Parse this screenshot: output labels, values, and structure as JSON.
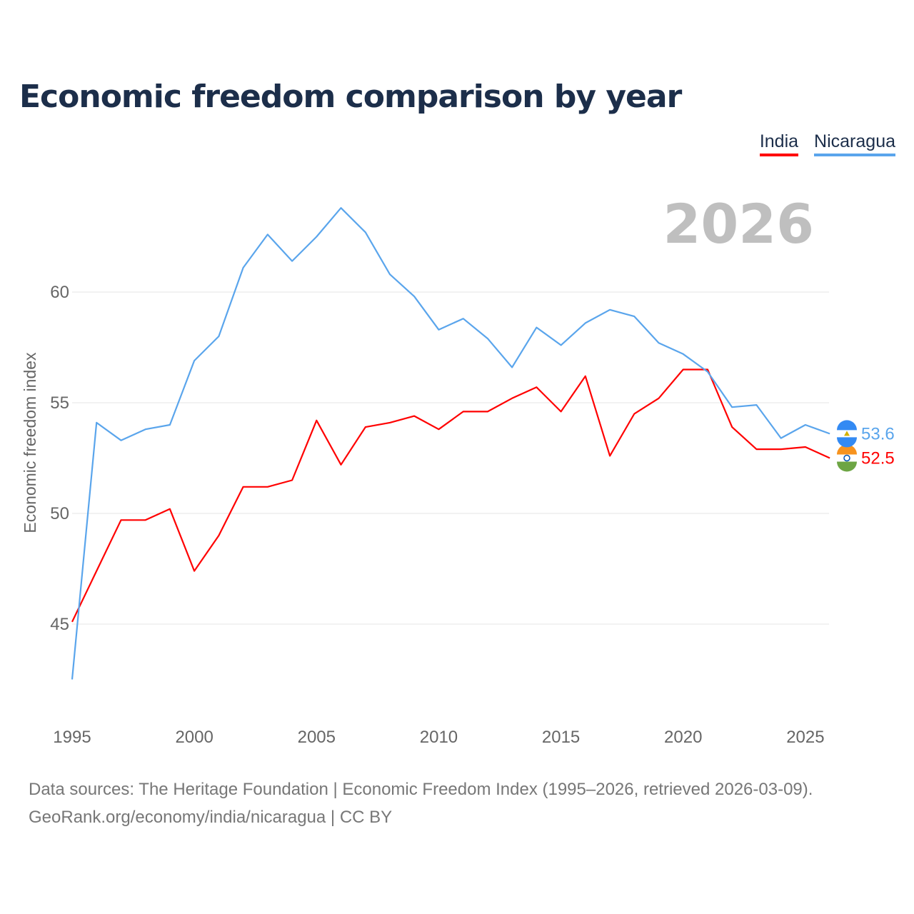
{
  "title": "Economic freedom comparison by year",
  "footer": {
    "line1": "Data sources: The Heritage Foundation | Economic Freedom Index (1995–2026, retrieved 2026-03-09).",
    "line2": "GeoRank.org/economy/india/nicaragua | CC BY"
  },
  "chart_data": {
    "type": "line",
    "title": "Economic freedom comparison by year",
    "xlabel": "",
    "ylabel": "Economic freedom index",
    "current_year": "2026",
    "xlim": [
      1995,
      2026
    ],
    "ylim": [
      42,
      66
    ],
    "x_ticks": [
      1995,
      2000,
      2005,
      2010,
      2015,
      2020,
      2025
    ],
    "y_ticks": [
      45,
      50,
      55,
      60
    ],
    "grid": true,
    "legend_position": "top-right",
    "x": [
      1995,
      1996,
      1997,
      1998,
      1999,
      2000,
      2001,
      2002,
      2003,
      2004,
      2005,
      2006,
      2007,
      2008,
      2009,
      2010,
      2011,
      2012,
      2013,
      2014,
      2015,
      2016,
      2017,
      2018,
      2019,
      2020,
      2021,
      2022,
      2023,
      2024,
      2025,
      2026
    ],
    "series": [
      {
        "name": "India",
        "color": "#ff0000",
        "flag": "india-flag",
        "end_label": "52.5",
        "values": [
          45.1,
          47.4,
          49.7,
          49.7,
          50.2,
          47.4,
          49.0,
          51.2,
          51.2,
          51.5,
          54.2,
          52.2,
          53.9,
          54.1,
          54.4,
          53.8,
          54.6,
          54.6,
          55.2,
          55.7,
          54.6,
          56.2,
          52.6,
          54.5,
          55.2,
          56.5,
          56.5,
          53.9,
          52.9,
          52.9,
          53.0,
          52.5
        ]
      },
      {
        "name": "Nicaragua",
        "color": "#5aa5ec",
        "flag": "nicaragua-flag",
        "end_label": "53.6",
        "values": [
          42.5,
          54.1,
          53.3,
          53.8,
          54.0,
          56.9,
          58.0,
          61.1,
          62.6,
          61.4,
          62.5,
          63.8,
          62.7,
          60.8,
          59.8,
          58.3,
          58.8,
          57.9,
          56.6,
          58.4,
          57.6,
          58.6,
          59.2,
          58.9,
          57.7,
          57.2,
          56.4,
          54.8,
          54.9,
          53.4,
          54.0,
          53.6
        ]
      }
    ]
  }
}
